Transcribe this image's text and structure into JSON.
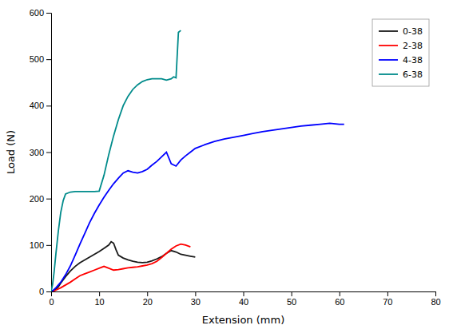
{
  "chart_data": {
    "type": "line",
    "xlabel": "Extension (mm)",
    "ylabel": "Load (N)",
    "xlim": [
      0,
      80
    ],
    "ylim": [
      0,
      600
    ],
    "xticks": [
      0,
      10,
      20,
      30,
      40,
      50,
      60,
      70,
      80
    ],
    "yticks": [
      0,
      100,
      200,
      300,
      400,
      500,
      600
    ],
    "grid": false,
    "legend": "upper right",
    "series": [
      {
        "name": "0-38",
        "color": "#1a1a1a",
        "x": [
          0,
          0.5,
          1,
          1.5,
          2,
          3,
          4,
          5,
          6,
          7,
          8,
          9,
          10,
          11,
          12,
          12.5,
          13,
          13.5,
          14,
          15,
          16,
          17,
          18,
          19,
          20,
          21,
          22,
          23,
          24,
          25,
          26,
          27,
          28,
          29,
          30
        ],
        "values": [
          0,
          2,
          5,
          10,
          18,
          32,
          44,
          54,
          62,
          68,
          74,
          80,
          86,
          93,
          100,
          107,
          104,
          90,
          78,
          72,
          68,
          65,
          63,
          62,
          63,
          66,
          70,
          75,
          82,
          88,
          85,
          80,
          78,
          76,
          74
        ]
      },
      {
        "name": "2-38",
        "color": "#ff0000",
        "x": [
          0,
          0.5,
          1,
          2,
          3,
          4,
          5,
          6,
          7,
          8,
          9,
          10,
          11,
          12,
          13,
          14,
          15,
          16,
          17,
          18,
          19,
          20,
          21,
          22,
          23,
          24,
          25,
          26,
          27,
          28,
          29
        ],
        "values": [
          0,
          1,
          3,
          8,
          14,
          20,
          27,
          34,
          38,
          42,
          46,
          50,
          54,
          50,
          46,
          47,
          49,
          51,
          52,
          53,
          55,
          57,
          60,
          65,
          73,
          82,
          91,
          98,
          102,
          100,
          96
        ]
      },
      {
        "name": "4-38",
        "color": "#0000ff",
        "x": [
          0,
          0.5,
          1,
          2,
          3,
          4,
          5,
          6,
          7,
          8,
          9,
          10,
          11,
          12,
          13,
          14,
          15,
          16,
          17,
          18,
          19,
          20,
          21,
          22,
          23,
          24,
          25,
          26,
          27,
          28,
          29,
          30,
          32,
          34,
          36,
          38,
          40,
          42,
          44,
          46,
          48,
          50,
          52,
          54,
          56,
          58,
          60,
          61
        ],
        "values": [
          0,
          3,
          8,
          20,
          36,
          55,
          78,
          102,
          125,
          148,
          168,
          186,
          203,
          218,
          232,
          244,
          255,
          260,
          257,
          255,
          258,
          263,
          272,
          280,
          290,
          300,
          275,
          270,
          283,
          292,
          300,
          308,
          316,
          323,
          328,
          332,
          336,
          340,
          344,
          347,
          350,
          353,
          356,
          358,
          360,
          362,
          360,
          360
        ]
      },
      {
        "name": "6-38",
        "color": "#008b8b",
        "x": [
          0,
          0.3,
          0.6,
          1,
          1.5,
          2,
          2.5,
          3,
          4,
          5,
          6,
          7,
          8,
          9,
          10,
          11,
          12,
          13,
          14,
          15,
          16,
          17,
          18,
          19,
          20,
          21,
          22,
          23,
          24,
          25,
          25.5,
          26,
          26.5,
          27
        ],
        "values": [
          0,
          15,
          40,
          82,
          130,
          170,
          195,
          210,
          214,
          215,
          215,
          215,
          215,
          215,
          216,
          250,
          295,
          335,
          370,
          400,
          420,
          435,
          445,
          452,
          456,
          458,
          458,
          458,
          455,
          458,
          462,
          460,
          558,
          562
        ]
      }
    ]
  }
}
